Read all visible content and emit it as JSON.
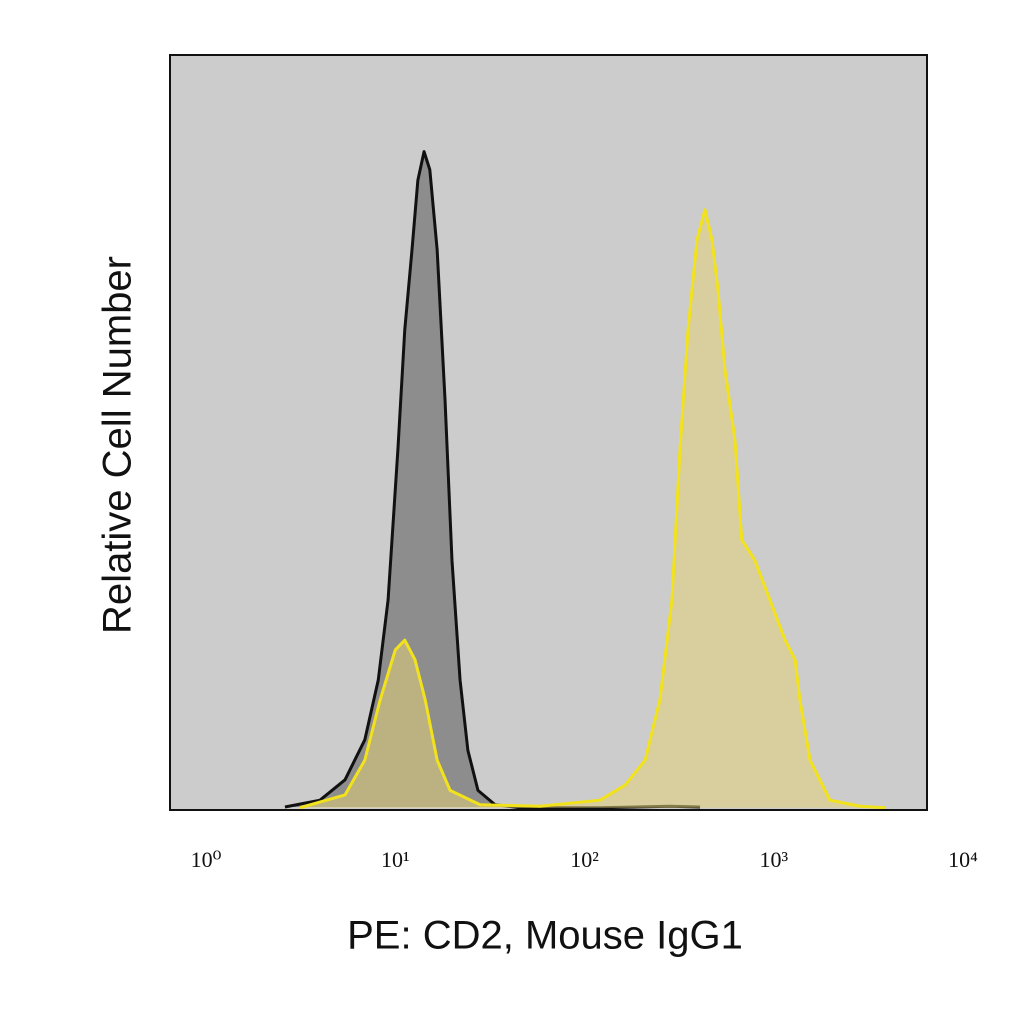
{
  "chart_data": {
    "type": "histogram-overlay",
    "x_label": "PE: CD2, Mouse IgG1",
    "y_label": "Relative Cell Number",
    "xscale": "log",
    "xlim": [
      1,
      10000
    ],
    "ylim": [
      0,
      100
    ],
    "xticks": [
      {
        "value": 1,
        "label": "10⁰"
      },
      {
        "value": 10,
        "label": "10¹"
      },
      {
        "value": 100,
        "label": "10²"
      },
      {
        "value": 1000,
        "label": "10³"
      },
      {
        "value": 10000,
        "label": "10⁴"
      }
    ],
    "background": "#cccccc",
    "series": [
      {
        "color": "#111111",
        "fill": "rgba(120,120,120,0.75)",
        "x": [
          4.05,
          6.2,
          8.41,
          10.7,
          12.6,
          14.2,
          16.0,
          17.4,
          19.0,
          20.4,
          22.0,
          23.6,
          25.8,
          28.4,
          30.9,
          34.1,
          37.5,
          42.4,
          52.2,
          70.7,
          115,
          187,
          439,
          632
        ],
        "values": [
          0.4,
          1.3,
          4.0,
          9.3,
          17.2,
          27.8,
          47.7,
          63.6,
          74.2,
          83.4,
          87.2,
          84.8,
          74.2,
          54.3,
          33.1,
          17.2,
          7.9,
          2.6,
          0.7,
          0.3,
          0.3,
          0.3,
          0.5,
          0.4
        ]
      },
      {
        "color": "#f2e21c",
        "fill": "rgba(228,208,120,0.55)",
        "x": [
          4.86,
          8.41,
          10.7,
          12.9,
          15.5,
          17.4,
          19.7,
          22.3,
          25.8,
          30.2,
          43.5,
          90.2,
          187,
          254,
          324,
          388,
          449,
          495,
          546,
          609,
          671,
          731,
          786,
          856,
          967,
          1050,
          1230,
          1480,
          1780,
          2010,
          2130,
          2410,
          3070,
          4430,
          6000
        ],
        "values": [
          0.3,
          2.0,
          6.6,
          14.6,
          21.2,
          22.5,
          19.9,
          14.6,
          6.6,
          2.6,
          0.7,
          0.5,
          1.3,
          3.3,
          6.6,
          14.6,
          27.8,
          47.7,
          63.6,
          75.5,
          79.5,
          75.5,
          68.9,
          58.3,
          49.0,
          35.8,
          33.1,
          27.8,
          22.5,
          19.9,
          14.6,
          6.6,
          1.3,
          0.5,
          0.3
        ]
      }
    ]
  }
}
